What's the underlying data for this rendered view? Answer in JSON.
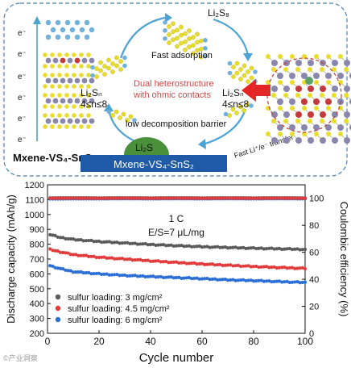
{
  "schematic": {
    "electron_label": "e⁻",
    "material_caption": "Mxene-VS₄-SnS₂",
    "top_species": "Li₂S₈",
    "left_species": "Li₂Sₙ",
    "left_range": "4≤n≤8",
    "right_species": "Li₂Sₙ",
    "right_range": "4≤n≤8",
    "fast_adsorption": "Fast adsorption",
    "heterostructure_line1": "Dual heterostructure",
    "heterostructure_line2": "with ohmic contacts",
    "decomposition": "low decomposition barrier",
    "product": "Li₂S",
    "substrate": "Mxene-VS₄-SnS₂",
    "transfer": "Fast Li⁺/e⁻ transfer",
    "colors": {
      "frame": "#4a7fb0",
      "substrate": "#1f5aa6",
      "product_dome": "#4a8f3a",
      "heterostructure_text": "#d04848",
      "arrow_red": "#e32525",
      "sulfur": "#e8dd2c",
      "vanadium": "#8a87ad",
      "tin": "#c43a3a"
    }
  },
  "chart_data": {
    "type": "scatter",
    "annotation_rate": "1 C",
    "annotation_es": "E/S=7 μL/mg",
    "xlabel": "Cycle number",
    "ylabel": "Discharge capacity (mAh/g)",
    "y2label": "Coulombic efficiency (%)",
    "xlim": [
      0,
      100
    ],
    "ylim": [
      200,
      1200
    ],
    "y2lim": [
      0,
      110
    ],
    "x_ticks": [
      0,
      20,
      40,
      60,
      80,
      100
    ],
    "y_ticks": [
      200,
      300,
      400,
      500,
      600,
      700,
      800,
      900,
      1000,
      1100,
      1200
    ],
    "y2_ticks": [
      0,
      20,
      40,
      60,
      80,
      100
    ],
    "grid": false,
    "legend_position": "bottom-left",
    "series": [
      {
        "name": "sulfur loading: 3 mg/cm²",
        "color": "#5a5a5a",
        "x": [
          1,
          5,
          10,
          20,
          30,
          40,
          50,
          60,
          70,
          80,
          90,
          100
        ],
        "y": [
          865,
          845,
          832,
          818,
          808,
          798,
          790,
          783,
          778,
          773,
          769,
          765
        ]
      },
      {
        "name": "sulfur loading: 4.5 mg/cm²",
        "color": "#e23b3b",
        "x": [
          1,
          5,
          10,
          20,
          30,
          40,
          50,
          60,
          70,
          80,
          90,
          100
        ],
        "y": [
          765,
          748,
          730,
          712,
          700,
          688,
          677,
          667,
          658,
          650,
          643,
          637
        ]
      },
      {
        "name": "sulfur loading: 6 mg/cm²",
        "color": "#2b6fd6",
        "x": [
          1,
          5,
          10,
          20,
          30,
          40,
          50,
          60,
          70,
          80,
          90,
          100
        ],
        "y": [
          655,
          635,
          615,
          600,
          590,
          582,
          575,
          568,
          560,
          555,
          548,
          542
        ]
      },
      {
        "role": "coulombic_efficiency",
        "color": "#2b6fd6",
        "x": [
          1,
          10,
          20,
          30,
          40,
          50,
          60,
          70,
          80,
          90,
          100
        ],
        "y": [
          99.5,
          99.6,
          99.6,
          99.7,
          99.6,
          99.7,
          99.6,
          99.7,
          99.6,
          99.7,
          99.6
        ]
      },
      {
        "role": "coulombic_efficiency",
        "color": "#5a5a5a",
        "x": [
          1,
          10,
          20,
          30,
          40,
          50,
          60,
          70,
          80,
          90,
          100
        ],
        "y": [
          100.3,
          100.4,
          100.3,
          100.4,
          100.3,
          100.4,
          100.3,
          100.4,
          100.3,
          100.4,
          100.3
        ]
      },
      {
        "role": "coulombic_efficiency",
        "color": "#e23b3b",
        "x": [
          1,
          10,
          20,
          30,
          40,
          50,
          60,
          70,
          80,
          90,
          100
        ],
        "y": [
          100.0,
          100.1,
          100.0,
          100.1,
          100.0,
          100.1,
          100.0,
          100.1,
          100.0,
          100.1,
          100.0
        ]
      }
    ]
  },
  "watermark": "©产业洞察"
}
